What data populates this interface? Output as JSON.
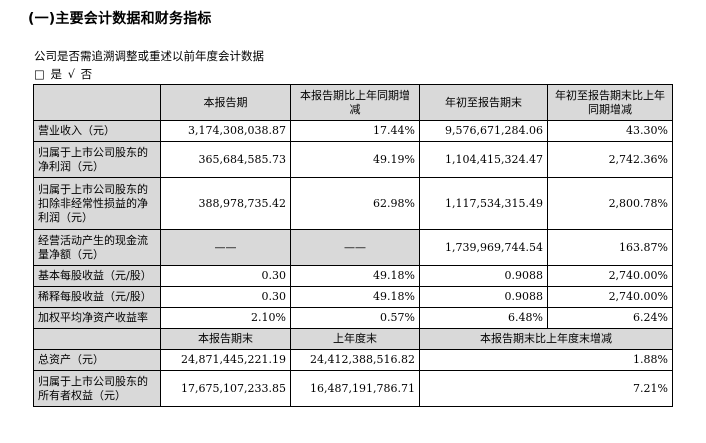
{
  "title": "(一)主要会计数据和财务指标",
  "intro": "公司是否需追溯调整或重述以前年度会计数据",
  "choice": {
    "yes_box": "□",
    "yes_label": "是",
    "no_mark": "√",
    "no_label": "否"
  },
  "header1": [
    "本报告期",
    "本报告期比上年同期增减",
    "年初至报告期末",
    "年初至报告期末比上年同期增减"
  ],
  "rows": [
    {
      "label": "营业收入（元）",
      "c1": "3,174,308,038.87",
      "c2": "17.44%",
      "c3": "9,576,671,284.06",
      "c4": "43.30%"
    },
    {
      "label": "归属于上市公司股东的净利润（元）",
      "c1": "365,684,585.73",
      "c2": "49.19%",
      "c3": "1,104,415,324.47",
      "c4": "2,742.36%"
    },
    {
      "label": "归属于上市公司股东的扣除非经常性损益的净利润（元）",
      "c1": "388,978,735.42",
      "c2": "62.98%",
      "c3": "1,117,534,315.49",
      "c4": "2,800.78%"
    },
    {
      "label": "经营活动产生的现金流量净额（元）",
      "c1": "——",
      "c2": "——",
      "c3": "1,739,969,744.54",
      "c4": "163.87%"
    },
    {
      "label": "基本每股收益（元/股）",
      "c1": "0.30",
      "c2": "49.18%",
      "c3": "0.9088",
      "c4": "2,740.00%"
    },
    {
      "label": "稀释每股收益（元/股）",
      "c1": "0.30",
      "c2": "49.18%",
      "c3": "0.9088",
      "c4": "2,740.00%"
    },
    {
      "label": "加权平均净资产收益率",
      "c1": "2.10%",
      "c2": "0.57%",
      "c3": "6.48%",
      "c4": "6.24%"
    }
  ],
  "header2": [
    "本报告期末",
    "上年度末",
    "本报告期末比上年度末增减"
  ],
  "rows2": [
    {
      "label": "总资产（元）",
      "c1": "24,871,445,221.19",
      "c2": "24,412,388,516.82",
      "c3": "1.88%"
    },
    {
      "label": "归属于上市公司股东的所有者权益（元）",
      "c1": "17,675,107,233.85",
      "c2": "16,487,191,786.71",
      "c3": "7.21%"
    }
  ]
}
